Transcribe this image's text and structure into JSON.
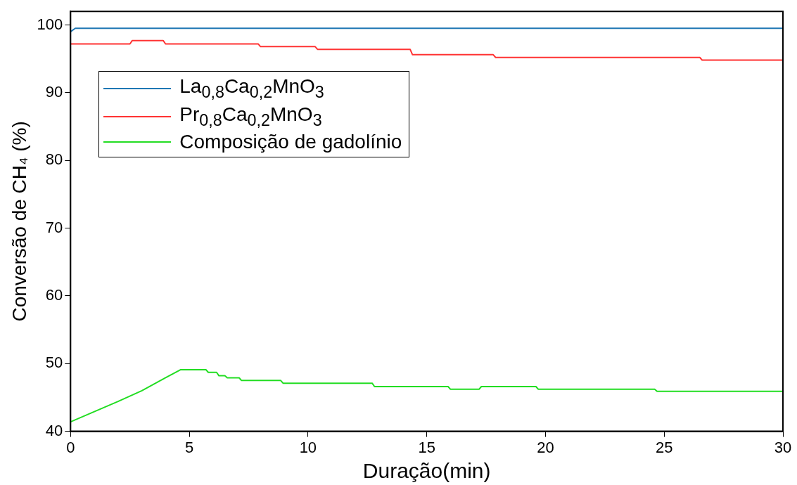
{
  "chart_data": {
    "type": "line",
    "xlabel": "Duração(min)",
    "ylabel": "Conversão de CH₄ (%)",
    "xlim": [
      0,
      30
    ],
    "ylim": [
      40,
      102
    ],
    "xticks": [
      0,
      5,
      10,
      15,
      20,
      25,
      30
    ],
    "yticks": [
      40,
      50,
      60,
      70,
      80,
      90,
      100
    ],
    "grid": false,
    "legend": "top left",
    "marker": "none",
    "line_style": "solid",
    "series": [
      {
        "name": "La$_{0,8}$Ca$_{0,2}$MnO$_{3}$",
        "color": "#1f77b4",
        "x": [
          0,
          0.2,
          30
        ],
        "values": [
          99.0,
          99.5,
          99.5
        ]
      },
      {
        "name": "Pr$_{0,8}$Ca$_{0,2}$MnO$_{3}$",
        "color": "#ff3333",
        "x": [
          0,
          2.5,
          2.6,
          3.9,
          4.0,
          7.9,
          8.0,
          10.3,
          10.4,
          14.3,
          14.4,
          17.8,
          17.9,
          26.5,
          26.6,
          30
        ],
        "values": [
          97.2,
          97.2,
          97.7,
          97.7,
          97.2,
          97.2,
          96.8,
          96.8,
          96.4,
          96.4,
          95.6,
          95.6,
          95.2,
          95.2,
          94.8,
          94.8
        ]
      },
      {
        "name": "Composição de gadolínio",
        "color": "#22dd22",
        "x": [
          0,
          1,
          2,
          3,
          4,
          4.64,
          5.7,
          5.8,
          6.15,
          6.25,
          6.5,
          6.6,
          7.1,
          7.2,
          8.85,
          8.95,
          12.7,
          12.8,
          15.9,
          16.0,
          17.2,
          17.3,
          19.6,
          19.7,
          24.6,
          24.7,
          30
        ],
        "values": [
          41.4,
          42.9,
          44.4,
          46.0,
          47.9,
          49.1,
          49.1,
          48.7,
          48.7,
          48.2,
          48.2,
          47.9,
          47.9,
          47.5,
          47.5,
          47.1,
          47.1,
          46.6,
          46.6,
          46.2,
          46.2,
          46.6,
          46.6,
          46.2,
          46.2,
          45.9,
          45.9
        ]
      }
    ]
  }
}
